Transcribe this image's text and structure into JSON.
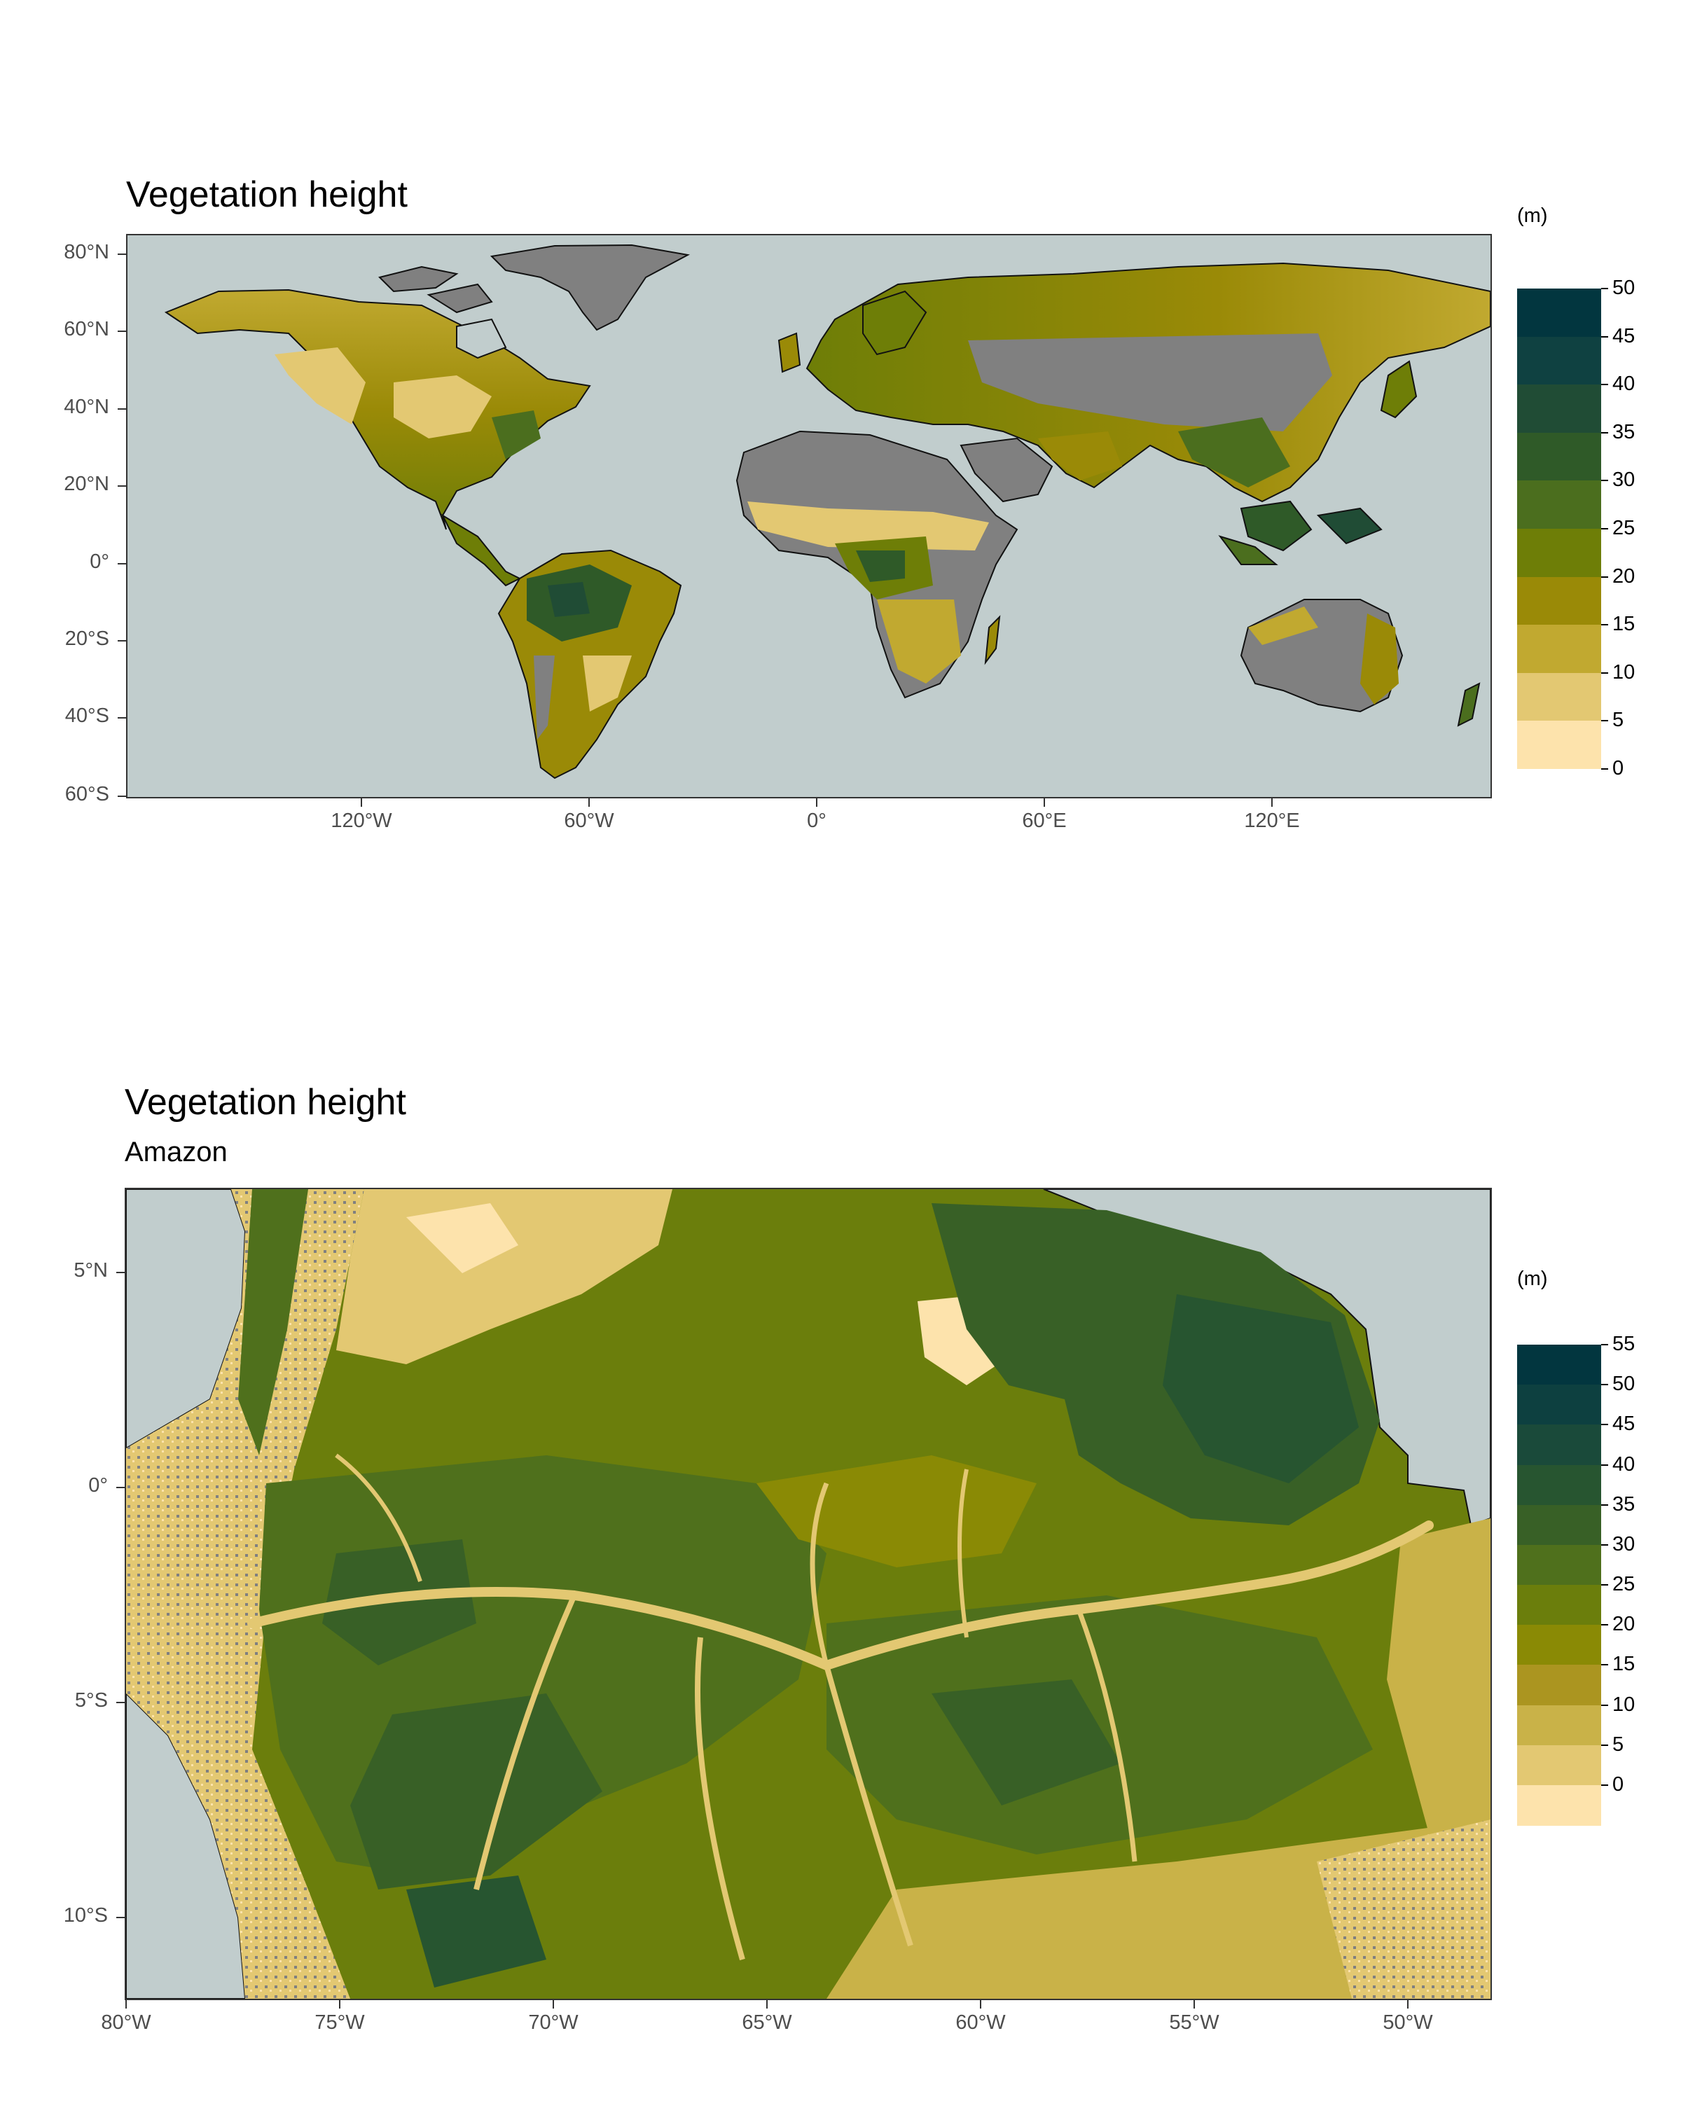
{
  "panel1": {
    "title": "Vegetation height",
    "y_labels": [
      "80°N",
      "60°N",
      "40°N",
      "20°N",
      "0°",
      "20°S",
      "40°S",
      "60°S"
    ],
    "x_labels": [
      "120°W",
      "60°W",
      "0°",
      "60°E",
      "120°E"
    ],
    "legend": {
      "unit": "(m)",
      "labels": [
        "50",
        "45",
        "40",
        "35",
        "30",
        "25",
        "20",
        "15",
        "10",
        "5",
        "0"
      ],
      "colors": [
        "#02363f",
        "#0f4141",
        "#204c35",
        "#2f5a28",
        "#4b6e1e",
        "#6e7e07",
        "#9a8a07",
        "#c1a930",
        "#e3c872",
        "#fde3ac"
      ]
    }
  },
  "panel2": {
    "title": "Vegetation height",
    "subtitle": "Amazon",
    "y_labels": [
      "5°N",
      "0°",
      "5°S",
      "10°S"
    ],
    "x_labels": [
      "80°W",
      "75°W",
      "70°W",
      "65°W",
      "60°W",
      "55°W",
      "50°W"
    ],
    "legend": {
      "unit": "(m)",
      "labels": [
        "55",
        "50",
        "45",
        "40",
        "35",
        "30",
        "25",
        "20",
        "15",
        "10",
        "5",
        "0"
      ],
      "colors": [
        "#02363f",
        "#0d4040",
        "#1a4a3a",
        "#275530",
        "#386026",
        "#4f701c",
        "#6b7e0c",
        "#8a8a05",
        "#ab9520",
        "#c9b248",
        "#e3c872",
        "#fde3ac"
      ]
    }
  },
  "colors": {
    "ocean": "#c1cdcd",
    "bare": "#808080"
  }
}
